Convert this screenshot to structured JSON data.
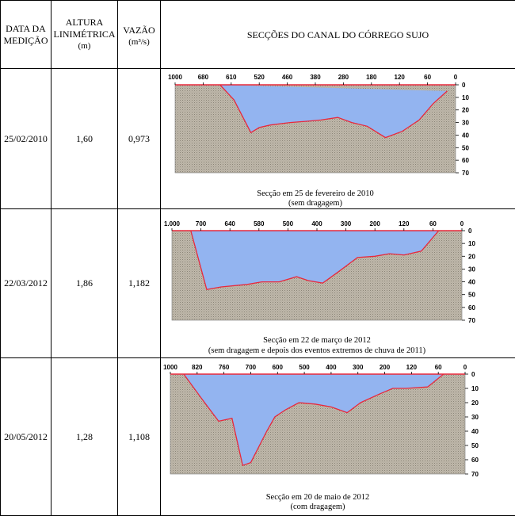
{
  "headers": {
    "date": [
      "DATA DA",
      "MEDIÇÃO"
    ],
    "height": [
      "ALTURA",
      "LINIMÉTRICA",
      "(m)"
    ],
    "flow": [
      "VAZÃO",
      "(m³/s)"
    ],
    "sections": "SECÇÕES DO CANAL DO CÓRREGO SUJO"
  },
  "rows": [
    {
      "date": "25/02/2010",
      "height": "1,60",
      "flow": "0,973"
    },
    {
      "date": "22/03/2012",
      "height": "1,86",
      "flow": "1,182"
    },
    {
      "date": "20/05/2012",
      "height": "1,28",
      "flow": "1,108"
    }
  ],
  "colors": {
    "water": "#93B4F0",
    "ground": "#BFB8AA",
    "line": "#E8283C"
  },
  "chart_data": [
    {
      "type": "area",
      "x_tick_labels": [
        "1000",
        "680",
        "610",
        "520",
        "460",
        "380",
        "280",
        "180",
        "120",
        "60",
        "0"
      ],
      "y_tick_labels": [
        "0",
        "10",
        "20",
        "30",
        "40",
        "50",
        "60",
        "70"
      ],
      "xlim": [
        0,
        10
      ],
      "ylim": [
        0,
        70
      ],
      "profile": {
        "x": [
          1.6,
          2.1,
          2.7,
          3.0,
          3.4,
          4.1,
          4.7,
          5.2,
          5.8,
          6.3,
          6.85,
          7.5,
          8.1,
          8.7,
          9.2,
          9.7
        ],
        "depth": [
          0,
          12,
          38,
          34,
          32,
          30,
          29,
          28,
          26,
          30,
          33,
          42,
          37,
          28,
          15,
          5
        ]
      },
      "caption": [
        "Secção em 25 de fevereiro de 2010",
        "(sem dragagem)"
      ]
    },
    {
      "type": "area",
      "x_tick_labels": [
        "1.000",
        "700",
        "640",
        "580",
        "500",
        "400",
        "300",
        "200",
        "120",
        "60",
        "0"
      ],
      "y_tick_labels": [
        "0",
        "10",
        "20",
        "30",
        "40",
        "50",
        "60",
        "70"
      ],
      "xlim": [
        0,
        10
      ],
      "ylim": [
        0,
        70
      ],
      "profile": {
        "x": [
          0.65,
          1.2,
          1.7,
          2.6,
          3.1,
          3.7,
          4.3,
          4.7,
          5.2,
          5.75,
          6.4,
          7.0,
          7.5,
          8.0,
          8.6,
          9.2
        ],
        "depth": [
          0,
          46,
          44,
          42,
          40,
          40,
          36,
          39,
          41,
          32,
          21,
          20,
          18,
          19,
          16,
          0
        ]
      },
      "caption": [
        "Secção em 22 de março de 2012",
        "(sem dragagem e depois dos eventos extremos de chuva de 2011)"
      ]
    },
    {
      "type": "area",
      "x_tick_labels": [
        "1000",
        "820",
        "760",
        "700",
        "600",
        "500",
        "400",
        "300",
        "200",
        "120",
        "60",
        "0"
      ],
      "y_tick_labels": [
        "0",
        "10",
        "20",
        "30",
        "40",
        "50",
        "60",
        "70"
      ],
      "xlim": [
        0,
        11
      ],
      "ylim": [
        0,
        70
      ],
      "profile": {
        "x": [
          0.5,
          1.2,
          1.8,
          2.3,
          2.7,
          3.0,
          3.6,
          3.9,
          4.3,
          4.8,
          5.4,
          6.0,
          6.6,
          7.1,
          7.8,
          8.3,
          8.8,
          9.6,
          10.2
        ],
        "depth": [
          0,
          18,
          33,
          31,
          64,
          62,
          40,
          30,
          25,
          20,
          21,
          23,
          27,
          20,
          14,
          10,
          10,
          9,
          0
        ]
      },
      "caption": [
        "Secção em 20 de maio de 2012",
        "(com dragagem)"
      ]
    }
  ]
}
